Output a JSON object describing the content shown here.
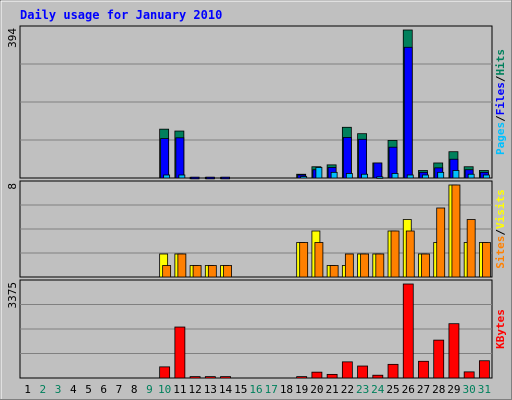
{
  "title": "Daily usage for January 2010",
  "colors": {
    "hits": "#00805c",
    "files": "#0000ff",
    "pages": "#00c0ff",
    "visits": "#ffff00",
    "sites": "#ff8000",
    "kbytes": "#ff0000",
    "title": "#0000ff",
    "weekend_day": "#00805c",
    "weekday": "#000000",
    "panel_bg": "#c0c0c0"
  },
  "chart_data": [
    {
      "type": "bar",
      "panel": "hits-files-pages",
      "ylabel_parts": [
        "Pages",
        "Files",
        "Hits"
      ],
      "ymax_label": "394",
      "ylim": [
        0,
        394
      ],
      "categories": [
        "1",
        "2",
        "3",
        "4",
        "5",
        "6",
        "7",
        "8",
        "9",
        "10",
        "11",
        "12",
        "13",
        "14",
        "15",
        "16",
        "17",
        "18",
        "19",
        "20",
        "21",
        "22",
        "23",
        "24",
        "25",
        "26",
        "27",
        "28",
        "29",
        "30",
        "31"
      ],
      "series": [
        {
          "name": "Hits",
          "values": [
            0,
            0,
            0,
            0,
            0,
            0,
            0,
            0,
            0,
            130,
            125,
            2,
            2,
            2,
            0,
            0,
            0,
            0,
            10,
            30,
            35,
            135,
            118,
            40,
            100,
            394,
            20,
            40,
            70,
            30,
            20
          ]
        },
        {
          "name": "Files",
          "values": [
            0,
            0,
            0,
            0,
            0,
            0,
            0,
            0,
            0,
            105,
            107,
            2,
            2,
            2,
            0,
            0,
            0,
            0,
            8,
            22,
            28,
            108,
            103,
            40,
            82,
            348,
            15,
            27,
            50,
            22,
            15
          ]
        },
        {
          "name": "Pages",
          "values": [
            0,
            0,
            0,
            0,
            0,
            0,
            0,
            0,
            0,
            8,
            8,
            0,
            0,
            0,
            0,
            0,
            0,
            0,
            4,
            28,
            15,
            12,
            10,
            3,
            12,
            8,
            8,
            15,
            20,
            10,
            8
          ]
        }
      ]
    },
    {
      "type": "bar",
      "panel": "visits-sites",
      "ylabel_parts": [
        "Sites",
        "Visits"
      ],
      "ymax_label": "8",
      "ylim": [
        0,
        8
      ],
      "categories": [
        "1",
        "2",
        "3",
        "4",
        "5",
        "6",
        "7",
        "8",
        "9",
        "10",
        "11",
        "12",
        "13",
        "14",
        "15",
        "16",
        "17",
        "18",
        "19",
        "20",
        "21",
        "22",
        "23",
        "24",
        "25",
        "26",
        "27",
        "28",
        "29",
        "30",
        "31"
      ],
      "series": [
        {
          "name": "Visits",
          "values": [
            0,
            0,
            0,
            0,
            0,
            0,
            0,
            0,
            0,
            2,
            2,
            1,
            1,
            1,
            0,
            0,
            0,
            0,
            3,
            4,
            1,
            1,
            2,
            2,
            4,
            5,
            2,
            3,
            8,
            3,
            3
          ]
        },
        {
          "name": "Sites",
          "values": [
            0,
            0,
            0,
            0,
            0,
            0,
            0,
            0,
            0,
            1,
            2,
            1,
            1,
            1,
            0,
            0,
            0,
            0,
            3,
            3,
            1,
            2,
            2,
            2,
            4,
            4,
            2,
            6,
            8,
            5,
            3
          ]
        }
      ]
    },
    {
      "type": "bar",
      "panel": "kbytes",
      "ylabel_parts": [
        "KBytes"
      ],
      "ymax_label": "3375",
      "ylim": [
        0,
        3375
      ],
      "categories": [
        "1",
        "2",
        "3",
        "4",
        "5",
        "6",
        "7",
        "8",
        "9",
        "10",
        "11",
        "12",
        "13",
        "14",
        "15",
        "16",
        "17",
        "18",
        "19",
        "20",
        "21",
        "22",
        "23",
        "24",
        "25",
        "26",
        "27",
        "28",
        "29",
        "30",
        "31"
      ],
      "series": [
        {
          "name": "KBytes",
          "values": [
            0,
            0,
            0,
            0,
            0,
            0,
            0,
            0,
            0,
            400,
            1830,
            50,
            50,
            50,
            0,
            0,
            0,
            0,
            50,
            210,
            130,
            580,
            430,
            100,
            490,
            3375,
            600,
            1360,
            1950,
            220,
            620
          ]
        }
      ]
    }
  ],
  "weekend_days": [
    "2",
    "3",
    "9",
    "10",
    "16",
    "17",
    "23",
    "24",
    "30",
    "31"
  ]
}
